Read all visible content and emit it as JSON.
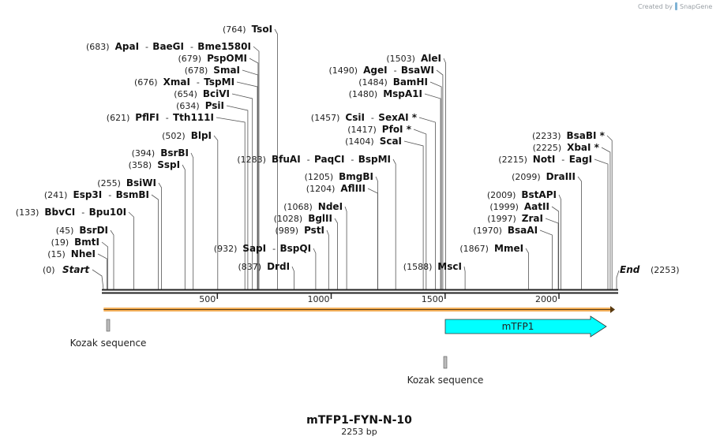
{
  "credit": {
    "prefix": "Created by",
    "brand": "SnapGene"
  },
  "sequence": {
    "name": "mTFP1-FYN-N-10",
    "length_label": "2253 bp",
    "length": 2253
  },
  "ends": {
    "start": {
      "pos": "(0)",
      "label": "Start",
      "bp": 0
    },
    "end": {
      "pos": "(2253)",
      "label": "End",
      "bp": 2253
    }
  },
  "ticks": [
    {
      "bp": 500,
      "label": "500"
    },
    {
      "bp": 1000,
      "label": "1000"
    },
    {
      "bp": 1500,
      "label": "1500"
    },
    {
      "bp": 2000,
      "label": "2000"
    }
  ],
  "sites": [
    {
      "pos": "(15)",
      "names": [
        "NheI"
      ],
      "bp": 15
    },
    {
      "pos": "(19)",
      "names": [
        "BmtI"
      ],
      "bp": 19
    },
    {
      "pos": "(45)",
      "names": [
        "BsrDI"
      ],
      "bp": 45
    },
    {
      "pos": "(133)",
      "names": [
        "BbvCI",
        "Bpu10I"
      ],
      "bp": 133
    },
    {
      "pos": "(241)",
      "names": [
        "Esp3I",
        "BsmBI"
      ],
      "bp": 241
    },
    {
      "pos": "(255)",
      "names": [
        "BsiWI"
      ],
      "bp": 255
    },
    {
      "pos": "(358)",
      "names": [
        "SspI"
      ],
      "bp": 358
    },
    {
      "pos": "(394)",
      "names": [
        "BsrBI"
      ],
      "bp": 394
    },
    {
      "pos": "(502)",
      "names": [
        "BlpI"
      ],
      "bp": 502
    },
    {
      "pos": "(621)",
      "names": [
        "PflFI",
        "Tth111I"
      ],
      "bp": 621
    },
    {
      "pos": "(634)",
      "names": [
        "PsiI"
      ],
      "bp": 634
    },
    {
      "pos": "(654)",
      "names": [
        "BciVI"
      ],
      "bp": 654
    },
    {
      "pos": "(676)",
      "names": [
        "XmaI",
        "TspMI"
      ],
      "bp": 676
    },
    {
      "pos": "(678)",
      "names": [
        "SmaI"
      ],
      "bp": 678
    },
    {
      "pos": "(679)",
      "names": [
        "PspOMI"
      ],
      "bp": 679
    },
    {
      "pos": "(683)",
      "names": [
        "ApaI",
        "BaeGI",
        "Bme1580I"
      ],
      "bp": 683
    },
    {
      "pos": "(764)",
      "names": [
        "TsoI"
      ],
      "bp": 764
    },
    {
      "pos": "(837)",
      "names": [
        "DrdI"
      ],
      "bp": 837
    },
    {
      "pos": "(932)",
      "names": [
        "SapI",
        "BspQI"
      ],
      "bp": 932
    },
    {
      "pos": "(989)",
      "names": [
        "PstI"
      ],
      "bp": 989
    },
    {
      "pos": "(1028)",
      "names": [
        "BglII"
      ],
      "bp": 1028
    },
    {
      "pos": "(1068)",
      "names": [
        "NdeI"
      ],
      "bp": 1068
    },
    {
      "pos": "(1204)",
      "names": [
        "AflIII"
      ],
      "bp": 1204
    },
    {
      "pos": "(1205)",
      "names": [
        "BmgBI"
      ],
      "bp": 1205
    },
    {
      "pos": "(1283)",
      "names": [
        "BfuAI",
        "PaqCI",
        "BspMI"
      ],
      "bp": 1283
    },
    {
      "pos": "(1404)",
      "names": [
        "ScaI"
      ],
      "bp": 1404
    },
    {
      "pos": "(1417)",
      "names": [
        "PfoI *"
      ],
      "bp": 1417
    },
    {
      "pos": "(1457)",
      "names": [
        "CsiI",
        "SexAI *"
      ],
      "bp": 1457
    },
    {
      "pos": "(1480)",
      "names": [
        "MspA1I"
      ],
      "bp": 1480
    },
    {
      "pos": "(1484)",
      "names": [
        "BamHI"
      ],
      "bp": 1484
    },
    {
      "pos": "(1490)",
      "names": [
        "AgeI",
        "BsaWI"
      ],
      "bp": 1490
    },
    {
      "pos": "(1503)",
      "names": [
        "AleI"
      ],
      "bp": 1503
    },
    {
      "pos": "(1588)",
      "names": [
        "MscI"
      ],
      "bp": 1588
    },
    {
      "pos": "(1867)",
      "names": [
        "MmeI"
      ],
      "bp": 1867
    },
    {
      "pos": "(1970)",
      "names": [
        "BsaAI"
      ],
      "bp": 1970
    },
    {
      "pos": "(1997)",
      "names": [
        "ZraI"
      ],
      "bp": 1997
    },
    {
      "pos": "(1999)",
      "names": [
        "AatII"
      ],
      "bp": 1999
    },
    {
      "pos": "(2009)",
      "names": [
        "BstAPI"
      ],
      "bp": 2009
    },
    {
      "pos": "(2099)",
      "names": [
        "DraIII"
      ],
      "bp": 2099
    },
    {
      "pos": "(2215)",
      "names": [
        "NotI",
        "EagI"
      ],
      "bp": 2215
    },
    {
      "pos": "(2225)",
      "names": [
        "XbaI *"
      ],
      "bp": 2225
    },
    {
      "pos": "(2233)",
      "names": [
        "BsaBI *"
      ],
      "bp": 2233
    }
  ],
  "features": [
    {
      "name": "",
      "type": "orf-strip",
      "start": 1,
      "end": 2253,
      "color": "#f4b05a"
    },
    {
      "name": "Kozak sequence",
      "type": "box",
      "start": 20,
      "end": 29,
      "color": "#bbbbbb"
    },
    {
      "name": "mTFP1",
      "type": "arrow",
      "start": 1520,
      "end": 2253,
      "color": "#00ffff"
    },
    {
      "name": "Kozak sequence",
      "type": "box",
      "start": 1512,
      "end": 1521,
      "color": "#bbbbbb"
    }
  ],
  "colors": {
    "backbone": "#222222",
    "leader": "#555555",
    "text": "#111111"
  }
}
